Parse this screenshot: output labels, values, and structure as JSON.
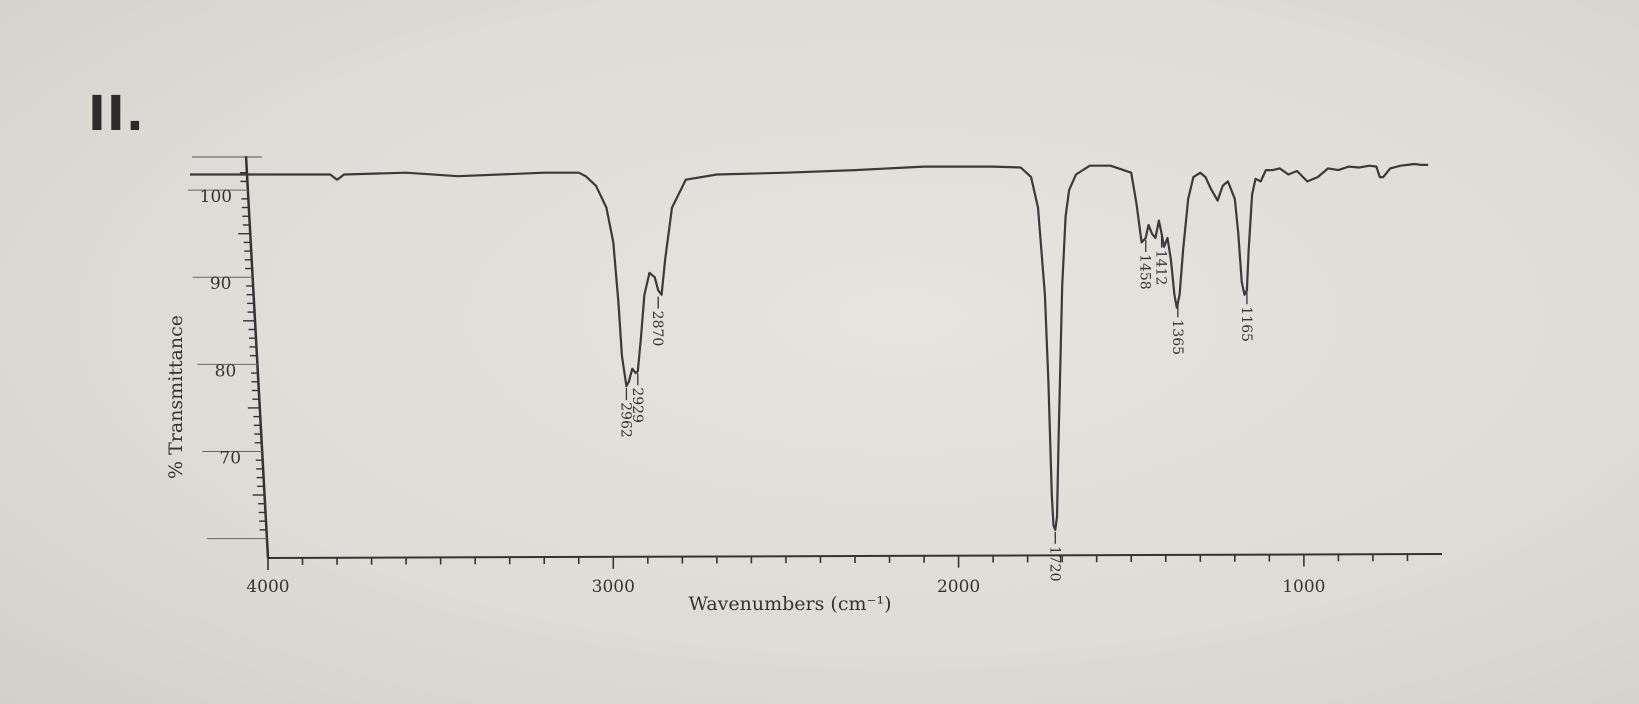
{
  "problem_label": "II.",
  "chart_data": {
    "type": "line",
    "title": "",
    "xlabel": "Wavenumbers (cm⁻¹)",
    "ylabel": "% Transmittance",
    "xlim": [
      4000,
      600
    ],
    "ylim": [
      58,
      103
    ],
    "x_ticks": [
      {
        "value": 4000,
        "label": "4000"
      },
      {
        "value": 3000,
        "label": "3000"
      },
      {
        "value": 2000,
        "label": "2000"
      },
      {
        "value": 1000,
        "label": "1000"
      }
    ],
    "y_ticks": [
      {
        "value": 100,
        "label": "100"
      },
      {
        "value": 90,
        "label": "90"
      },
      {
        "value": 80,
        "label": "80"
      },
      {
        "value": 70,
        "label": "70"
      }
    ],
    "grid": false,
    "line_color": "#3a3a3a",
    "series": [
      {
        "x": [
          4250,
          3820,
          3800,
          3780,
          3600,
          3450,
          3200,
          3100,
          3080,
          3050,
          3020,
          3000,
          2985,
          2975,
          2962,
          2955,
          2945,
          2935,
          2929,
          2920,
          2910,
          2895,
          2880,
          2870,
          2860,
          2850,
          2830,
          2790,
          2700,
          2500,
          2300,
          2100,
          1900,
          1820,
          1790,
          1770,
          1750,
          1740,
          1730,
          1725,
          1720,
          1715,
          1710,
          1700,
          1690,
          1680,
          1660,
          1620,
          1560,
          1500,
          1485,
          1470,
          1458,
          1450,
          1440,
          1430,
          1420,
          1412,
          1405,
          1395,
          1385,
          1375,
          1368,
          1365,
          1360,
          1350,
          1335,
          1320,
          1300,
          1285,
          1270,
          1250,
          1235,
          1220,
          1200,
          1190,
          1180,
          1172,
          1165,
          1160,
          1150,
          1140,
          1125,
          1110,
          1090,
          1070,
          1045,
          1020,
          990,
          960,
          930,
          900,
          870,
          840,
          810,
          790,
          780,
          770,
          750,
          720,
          700,
          680,
          660,
          640
        ],
        "y": [
          101.8,
          101.8,
          101.2,
          101.8,
          102.0,
          101.6,
          102.0,
          102.0,
          101.6,
          100.5,
          98.0,
          94.0,
          87.0,
          81.0,
          77.5,
          78.0,
          79.5,
          79.0,
          79.2,
          83.0,
          88.0,
          90.5,
          90.0,
          88.5,
          88.0,
          92.0,
          98.0,
          101.2,
          101.8,
          102.0,
          102.3,
          102.7,
          102.7,
          102.6,
          101.5,
          98.0,
          88.0,
          78.0,
          65.0,
          61.5,
          61.0,
          62.5,
          72.0,
          89.0,
          97.0,
          100.0,
          101.8,
          102.8,
          102.8,
          102.0,
          98.5,
          94.0,
          94.5,
          96.0,
          95.0,
          94.5,
          96.5,
          95.0,
          93.5,
          94.5,
          92.0,
          88.0,
          86.5,
          87.0,
          88.0,
          93.0,
          99.0,
          101.5,
          102.0,
          101.5,
          100.2,
          98.8,
          100.5,
          101.0,
          99.0,
          95.0,
          89.5,
          88.0,
          88.5,
          93.0,
          99.5,
          101.3,
          101.0,
          102.3,
          102.3,
          102.5,
          101.8,
          102.2,
          101.0,
          101.5,
          102.5,
          102.3,
          102.7,
          102.6,
          102.8,
          102.7,
          101.5,
          101.5,
          102.5,
          102.8,
          102.9,
          103.0,
          102.9,
          102.9
        ]
      }
    ],
    "annotations": [
      {
        "label": "2962",
        "x": 2962,
        "y": 77.5
      },
      {
        "label": "2929",
        "x": 2929,
        "y": 79.2
      },
      {
        "label": "2870",
        "x": 2870,
        "y": 88.0
      },
      {
        "label": "1720",
        "x": 1720,
        "y": 61.0
      },
      {
        "label": "1458",
        "x": 1458,
        "y": 94.5
      },
      {
        "label": "1412",
        "x": 1412,
        "y": 95.0
      },
      {
        "label": "1365",
        "x": 1365,
        "y": 87.0
      },
      {
        "label": "1165",
        "x": 1165,
        "y": 88.5
      }
    ]
  }
}
